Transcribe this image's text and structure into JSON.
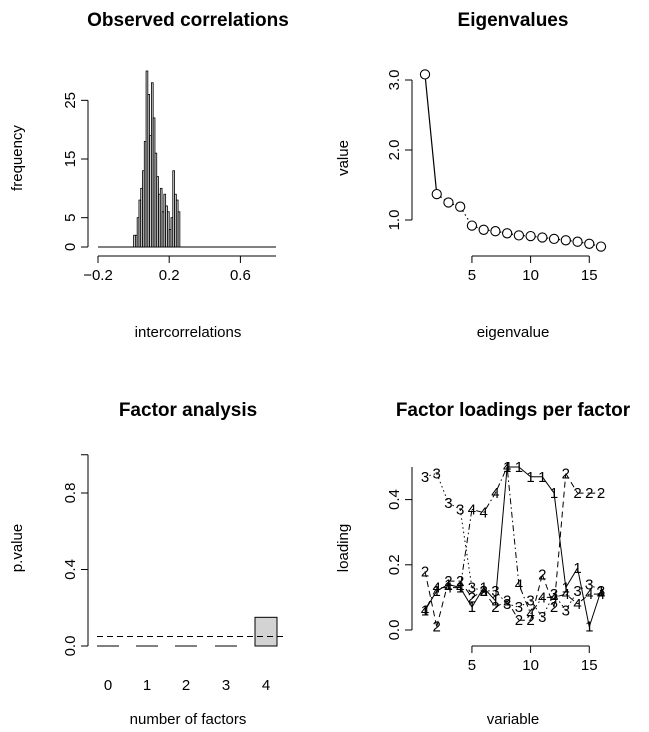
{
  "chart_data": [
    {
      "type": "bar",
      "title": "Observed correlations",
      "xlabel": "intercorrelations",
      "ylabel": "frequency",
      "xlim": [
        -0.2,
        0.8
      ],
      "ylim": [
        0,
        30
      ],
      "xticks": [
        -0.2,
        0.2,
        0.6
      ],
      "xtick_labels": [
        "−0.2",
        "0.2",
        "0.6"
      ],
      "yticks": [
        0,
        5,
        15,
        25
      ],
      "yticks_rotated": true,
      "bin_width": 0.01,
      "bins_start": [
        0.0,
        0.01,
        0.02,
        0.03,
        0.04,
        0.05,
        0.06,
        0.07,
        0.08,
        0.09,
        0.1,
        0.11,
        0.12,
        0.13,
        0.14,
        0.15,
        0.16,
        0.17,
        0.18,
        0.19,
        0.2,
        0.21,
        0.22,
        0.23,
        0.24,
        0.25
      ],
      "values": [
        2,
        2,
        5,
        8,
        10,
        13,
        18,
        30,
        26,
        19,
        28,
        22,
        16,
        12,
        9,
        10,
        6,
        9,
        7,
        6,
        3,
        5,
        13,
        9,
        8,
        6
      ],
      "baseline_range": [
        -0.2,
        0.8
      ],
      "grid": false,
      "legend": "none"
    },
    {
      "type": "line",
      "title": "Eigenvalues",
      "xlabel": "eigenvalue",
      "ylabel": "value",
      "xlim": [
        0.5,
        16.5
      ],
      "ylim": [
        0.6,
        3.2
      ],
      "xticks": [
        5,
        10,
        15
      ],
      "yticks": [
        1.0,
        2.0,
        3.0
      ],
      "ytick_labels": [
        "1.0",
        "2.0",
        "3.0"
      ],
      "yticks_rotated": true,
      "x": [
        1,
        2,
        3,
        4,
        5,
        6,
        7,
        8,
        9,
        10,
        11,
        12,
        13,
        14,
        15,
        16
      ],
      "y": [
        3.08,
        1.37,
        1.25,
        1.19,
        0.92,
        0.86,
        0.84,
        0.81,
        0.78,
        0.77,
        0.75,
        0.73,
        0.71,
        0.69,
        0.66,
        0.62
      ],
      "marker": "open-circle",
      "line_styles": [
        {
          "from": 1,
          "to": 2,
          "style": "solid"
        },
        {
          "from": 2,
          "to": 16,
          "style": "dotted"
        }
      ],
      "grid": false,
      "legend": "none"
    },
    {
      "type": "bar",
      "title": "Factor analysis",
      "xlabel": "number of factors",
      "ylabel": "p.value",
      "categories": [
        "0",
        "1",
        "2",
        "3",
        "4"
      ],
      "values": [
        0.0,
        0.0,
        0.0,
        0.0,
        0.15
      ],
      "ylim": [
        0,
        1
      ],
      "yticks": [
        0.0,
        0.4,
        0.8
      ],
      "ytick_labels": [
        "0.0",
        "0.4",
        "0.8"
      ],
      "yticks_rotated": true,
      "reference_line": {
        "y": 0.05,
        "style": "dashed"
      },
      "bar_color": "#d3d3d3",
      "grid": false,
      "legend": "none"
    },
    {
      "type": "line",
      "title": "Factor loadings per factor",
      "xlabel": "variable",
      "ylabel": "loading",
      "xlim": [
        1,
        16
      ],
      "ylim": [
        0,
        0.5
      ],
      "xticks": [
        5,
        10,
        15
      ],
      "yticks": [
        0.0,
        0.2,
        0.4
      ],
      "ytick_labels": [
        "0.0",
        "0.2",
        "0.4"
      ],
      "yticks_rotated": true,
      "x": [
        1,
        2,
        3,
        4,
        5,
        6,
        7,
        8,
        9,
        10,
        11,
        12,
        13,
        14,
        15,
        16
      ],
      "series": [
        {
          "label": "1",
          "style": "solid",
          "y": [
            0.06,
            0.12,
            0.14,
            0.13,
            0.07,
            0.13,
            0.09,
            0.5,
            0.5,
            0.47,
            0.47,
            0.42,
            0.13,
            0.19,
            0.01,
            0.12
          ]
        },
        {
          "label": "2",
          "style": "dashed",
          "y": [
            0.18,
            0.01,
            0.15,
            0.15,
            0.1,
            0.12,
            0.07,
            0.09,
            0.03,
            0.03,
            0.17,
            0.07,
            0.48,
            0.42,
            0.42,
            0.42
          ]
        },
        {
          "label": "3",
          "style": "dotted",
          "y": [
            0.47,
            0.48,
            0.39,
            0.37,
            0.13,
            0.12,
            0.12,
            0.08,
            0.07,
            0.09,
            0.04,
            0.11,
            0.06,
            0.12,
            0.14,
            0.12
          ]
        },
        {
          "label": "4",
          "style": "dotdash",
          "y": [
            0.06,
            0.13,
            0.13,
            0.13,
            0.37,
            0.36,
            0.42,
            0.5,
            0.14,
            0.05,
            0.1,
            0.1,
            0.11,
            0.08,
            0.11,
            0.11
          ]
        }
      ],
      "grid": false,
      "legend": "none"
    }
  ]
}
